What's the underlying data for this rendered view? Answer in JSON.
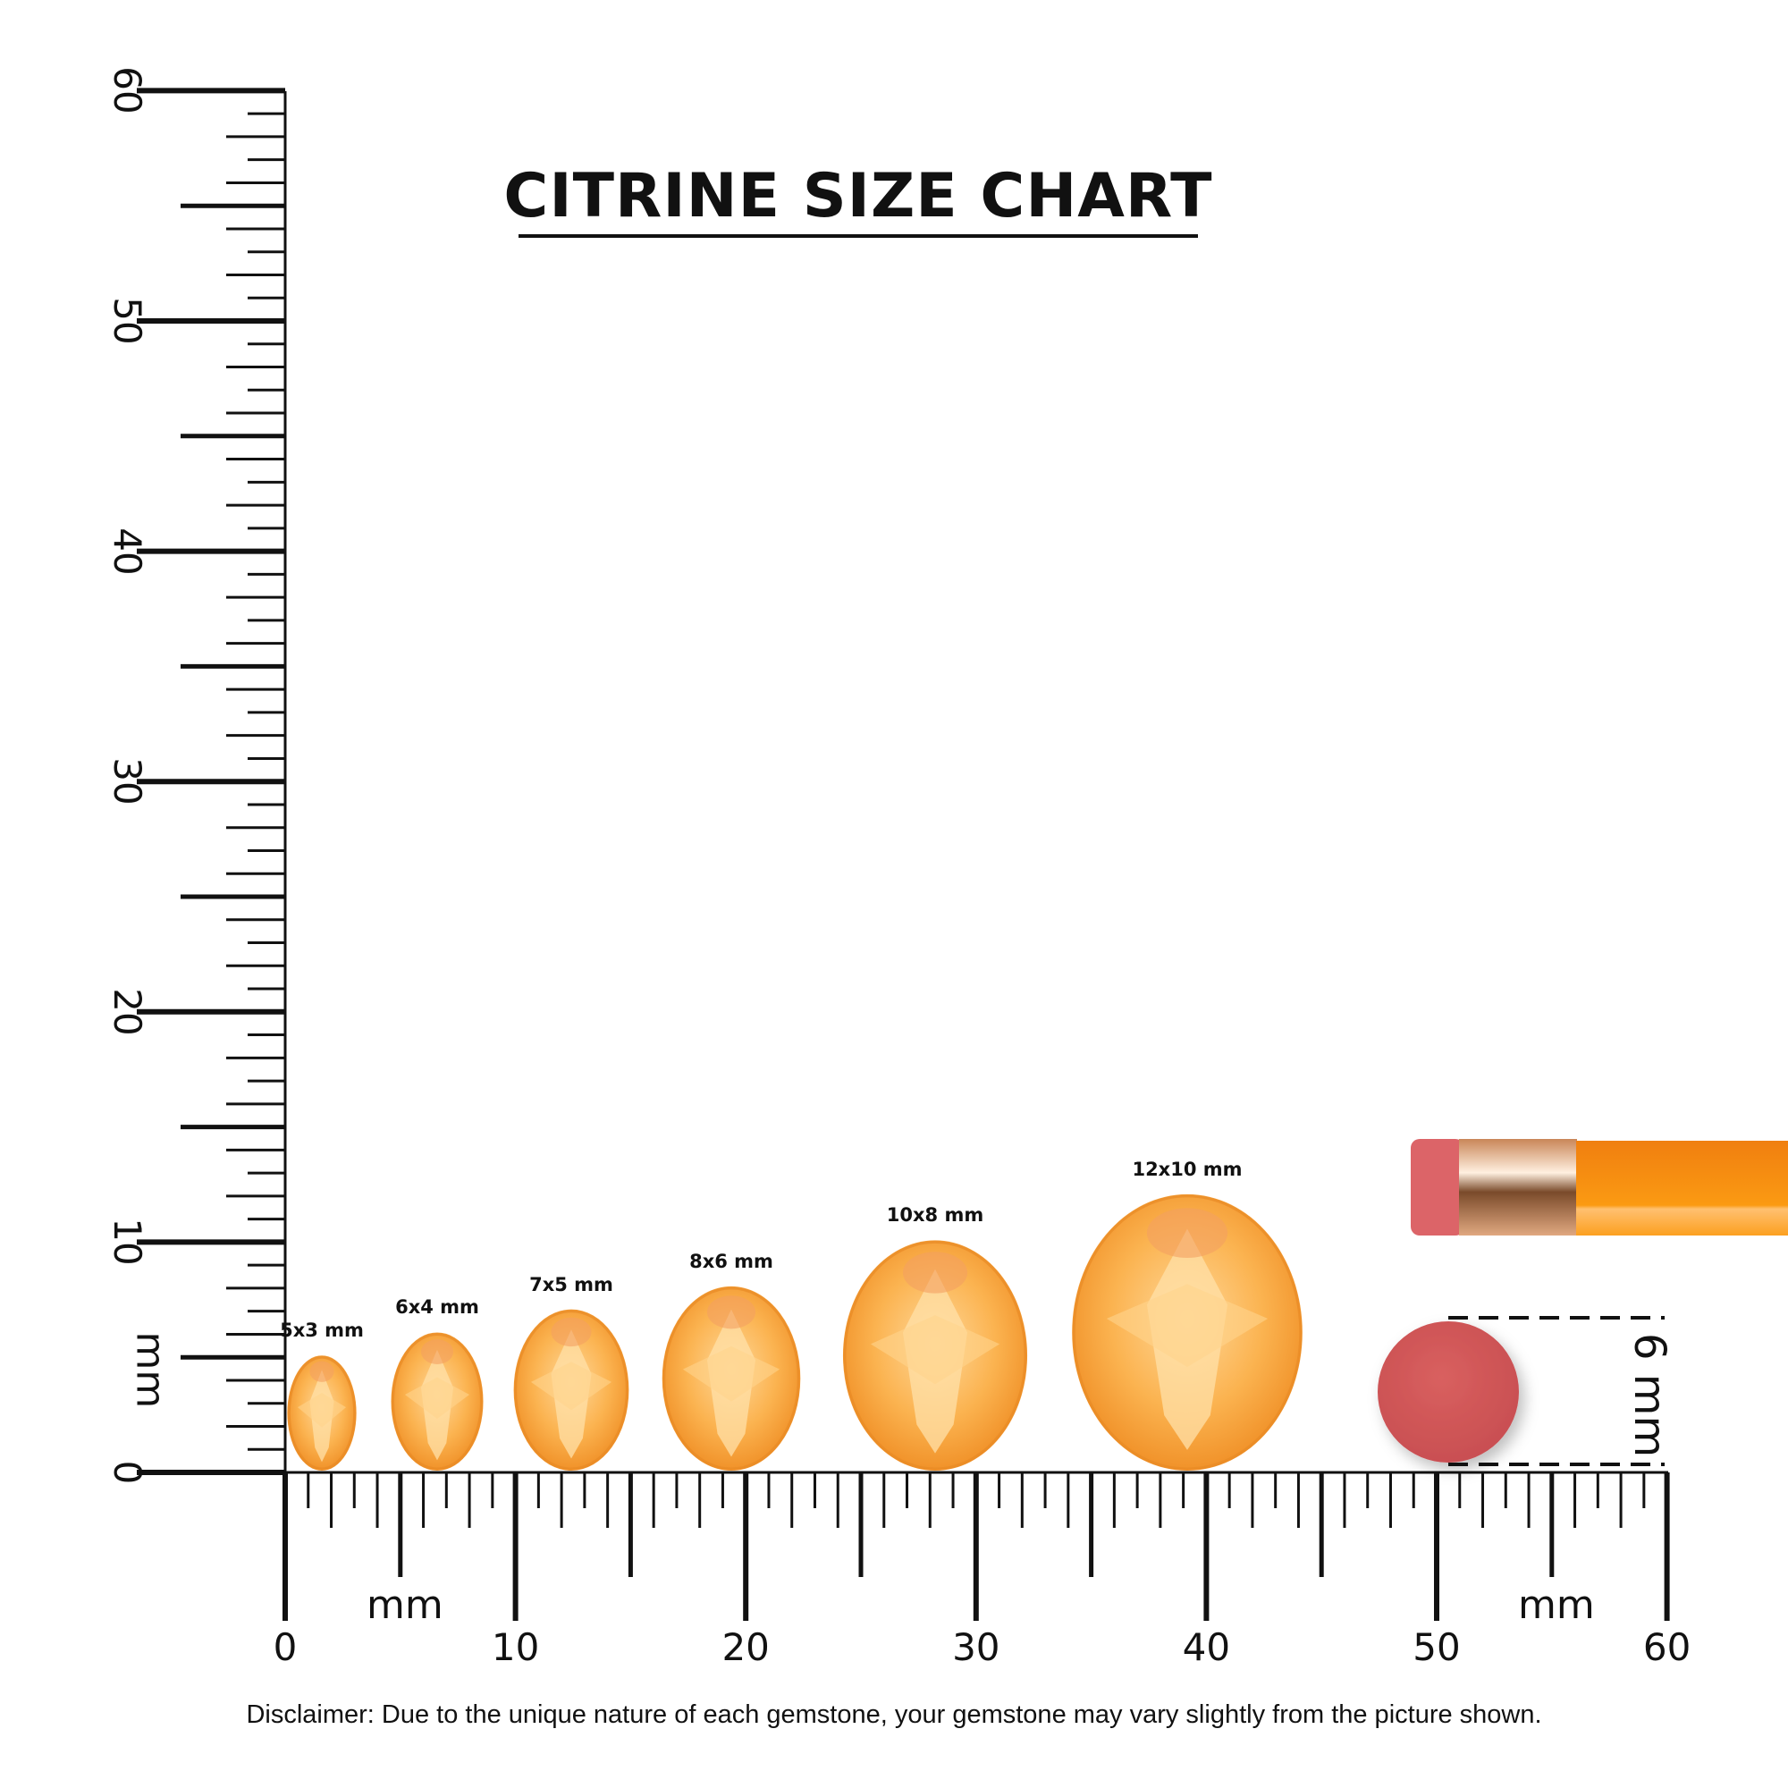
{
  "title": "CITRINE SIZE CHART",
  "disclaimer": "Disclaimer: Due to the unique nature of each gemstone, your gemstone may vary slightly from the picture shown.",
  "ruler": {
    "unit": "mm",
    "labels": [
      "0",
      "10",
      "20",
      "30",
      "40",
      "50",
      "60"
    ],
    "range_mm": [
      0,
      60
    ]
  },
  "gems": [
    {
      "label": "5x3 mm",
      "length_mm": 5,
      "width_mm": 3
    },
    {
      "label": "6x4 mm",
      "length_mm": 6,
      "width_mm": 4
    },
    {
      "label": "7x5 mm",
      "length_mm": 7,
      "width_mm": 5
    },
    {
      "label": "8x6 mm",
      "length_mm": 8,
      "width_mm": 6
    },
    {
      "label": "10x8 mm",
      "length_mm": 10,
      "width_mm": 8
    },
    {
      "label": "12x10 mm",
      "length_mm": 12,
      "width_mm": 10
    }
  ],
  "eraser_reference": {
    "label": "6 mm",
    "diameter_mm": 6
  },
  "colors": {
    "gem": "#f7a640",
    "gem_light": "#ffd89a",
    "eraser": "#d35a5c",
    "pencil": "#fb9410",
    "ferrule": "#d9a07a",
    "ink": "#111111"
  }
}
